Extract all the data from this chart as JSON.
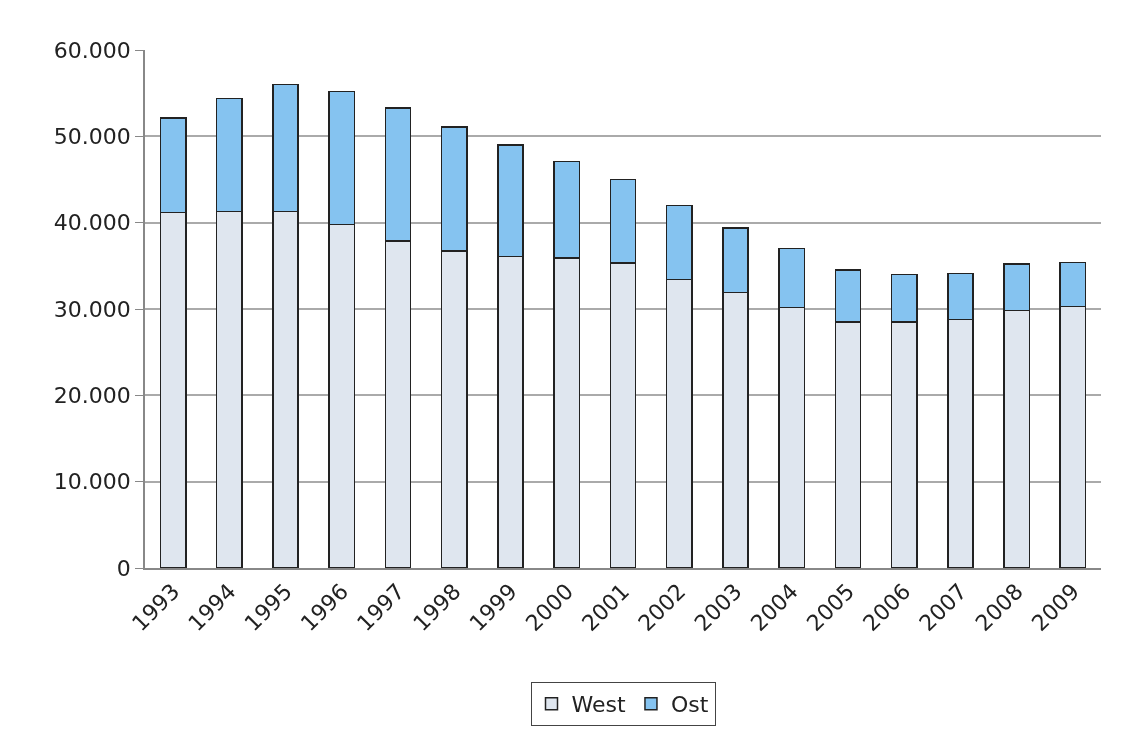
{
  "chart_data": {
    "type": "bar",
    "stacked": true,
    "categories": [
      "1993",
      "1994",
      "1995",
      "1996",
      "1997",
      "1998",
      "1999",
      "2000",
      "2001",
      "2002",
      "2003",
      "2004",
      "2005",
      "2006",
      "2007",
      "2008",
      "2009"
    ],
    "series": [
      {
        "name": "West",
        "color": "#dfe6ef",
        "values": [
          41200,
          41300,
          41300,
          39800,
          37900,
          36700,
          36100,
          35900,
          35300,
          33400,
          31900,
          30200,
          28500,
          28500,
          28800,
          29800,
          30300
        ]
      },
      {
        "name": "Ost",
        "color": "#85c3f0",
        "values": [
          10900,
          13100,
          14700,
          15400,
          15400,
          14400,
          12900,
          11200,
          9700,
          8600,
          7500,
          6800,
          6000,
          5500,
          5300,
          5400,
          5100
        ]
      }
    ],
    "ylim": [
      0,
      60000
    ],
    "yticks": [
      {
        "value": 0,
        "label": "0"
      },
      {
        "value": 10000,
        "label": "10.000"
      },
      {
        "value": 20000,
        "label": "20.000"
      },
      {
        "value": 30000,
        "label": "30.000"
      },
      {
        "value": 40000,
        "label": "40.000"
      },
      {
        "value": 50000,
        "label": "50.000"
      },
      {
        "value": 60000,
        "label": "60.000"
      }
    ],
    "grid": "y",
    "legend": "bottom"
  }
}
